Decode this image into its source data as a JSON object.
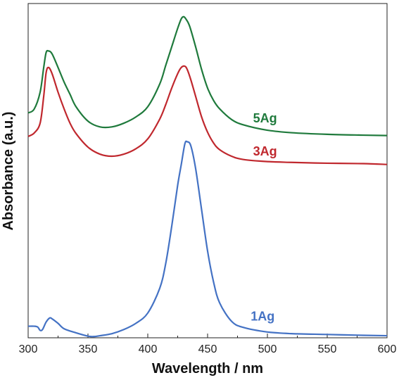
{
  "chart_data": {
    "type": "line",
    "xlabel": "Wavelength / nm",
    "ylabel": "Absorbance (a.u.)",
    "xlim": [
      300,
      600
    ],
    "xticks": [
      "300",
      "350",
      "400",
      "450",
      "500",
      "550",
      "600"
    ],
    "yticks_shown": false,
    "grid": false,
    "y_units": "arbitrary absorbance (offset, stacked curves)",
    "series": [
      {
        "name": "5Ag",
        "color": "#1f7a3c",
        "x": [
          300,
          305,
          310,
          313,
          315,
          317,
          320,
          325,
          330,
          335,
          340,
          350,
          360,
          370,
          380,
          390,
          400,
          410,
          415,
          420,
          425,
          428,
          430,
          432,
          435,
          440,
          445,
          450,
          455,
          460,
          470,
          480,
          500,
          520,
          550,
          580,
          600
        ],
        "y": [
          5.45,
          5.54,
          5.95,
          6.55,
          6.91,
          6.95,
          6.88,
          6.55,
          6.2,
          5.9,
          5.6,
          5.25,
          5.11,
          5.11,
          5.2,
          5.35,
          5.6,
          6.15,
          6.6,
          7.05,
          7.5,
          7.73,
          7.78,
          7.72,
          7.55,
          7.05,
          6.5,
          6.05,
          5.75,
          5.55,
          5.29,
          5.16,
          5.03,
          4.97,
          4.93,
          4.91,
          4.9
        ]
      },
      {
        "name": "3Ag",
        "color": "#c0282e",
        "x": [
          300,
          305,
          310,
          313,
          315,
          317,
          320,
          325,
          330,
          335,
          340,
          350,
          360,
          370,
          380,
          390,
          400,
          410,
          415,
          420,
          425,
          428,
          431,
          433,
          436,
          440,
          445,
          450,
          455,
          460,
          470,
          480,
          500,
          520,
          550,
          580,
          600
        ],
        "y": [
          4.88,
          4.96,
          5.2,
          5.85,
          6.42,
          6.55,
          6.4,
          5.95,
          5.55,
          5.2,
          4.95,
          4.62,
          4.45,
          4.4,
          4.45,
          4.58,
          4.82,
          5.3,
          5.65,
          6.05,
          6.4,
          6.55,
          6.58,
          6.5,
          6.25,
          5.85,
          5.35,
          4.98,
          4.72,
          4.56,
          4.4,
          4.32,
          4.27,
          4.25,
          4.23,
          4.22,
          4.2
        ]
      },
      {
        "name": "1Ag",
        "color": "#4472c4",
        "x": [
          300,
          305,
          308,
          310,
          312,
          315,
          318,
          320,
          325,
          330,
          340,
          350,
          355,
          360,
          370,
          380,
          390,
          400,
          410,
          415,
          420,
          425,
          428,
          431,
          433,
          436,
          440,
          445,
          450,
          455,
          460,
          470,
          480,
          500,
          520,
          550,
          580,
          600
        ],
        "y": [
          0.28,
          0.28,
          0.26,
          0.18,
          0.2,
          0.38,
          0.48,
          0.46,
          0.35,
          0.22,
          0.12,
          0.04,
          0.03,
          0.05,
          0.1,
          0.2,
          0.35,
          0.6,
          1.2,
          1.8,
          2.7,
          3.7,
          4.2,
          4.7,
          4.75,
          4.65,
          4.1,
          3.1,
          2.1,
          1.35,
          0.85,
          0.4,
          0.25,
          0.14,
          0.1,
          0.08,
          0.06,
          0.05
        ]
      }
    ],
    "annotations": [
      "5Ag",
      "3Ag",
      "1Ag"
    ]
  }
}
